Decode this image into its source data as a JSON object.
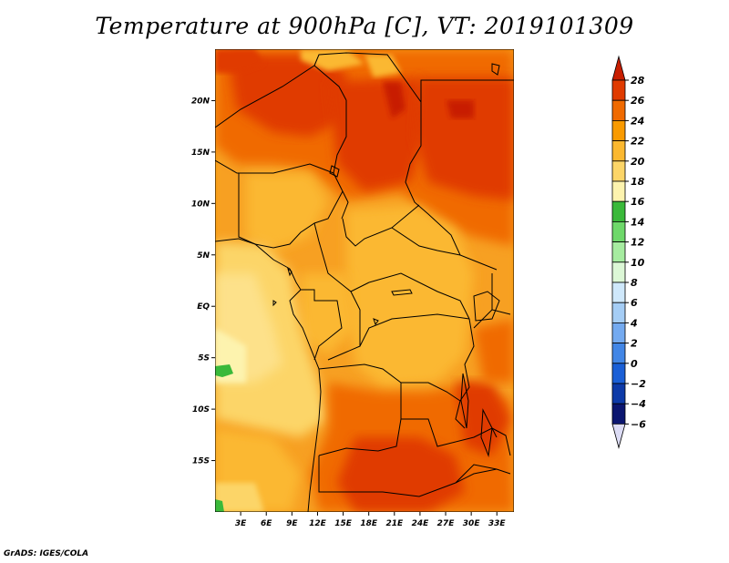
{
  "map": {
    "title": "Temperature at 900hPa [C], VT: 2019101309",
    "credit": "GrADS: IGES/COLA",
    "lat_ticks": [
      {
        "value": 20,
        "label": "20N"
      },
      {
        "value": 15,
        "label": "15N"
      },
      {
        "value": 10,
        "label": "10N"
      },
      {
        "value": 5,
        "label": "5N"
      },
      {
        "value": 0,
        "label": "EQ"
      },
      {
        "value": -5,
        "label": "5S"
      },
      {
        "value": -10,
        "label": "10S"
      },
      {
        "value": -15,
        "label": "15S"
      }
    ],
    "lon_ticks": [
      {
        "value": 3,
        "label": "3E"
      },
      {
        "value": 6,
        "label": "6E"
      },
      {
        "value": 9,
        "label": "9E"
      },
      {
        "value": 12,
        "label": "12E"
      },
      {
        "value": 15,
        "label": "15E"
      },
      {
        "value": 18,
        "label": "18E"
      },
      {
        "value": 21,
        "label": "21E"
      },
      {
        "value": 24,
        "label": "24E"
      },
      {
        "value": 27,
        "label": "27E"
      },
      {
        "value": 30,
        "label": "30E"
      },
      {
        "value": 33,
        "label": "33E"
      }
    ],
    "lon_range": [
      0,
      35
    ],
    "lat_range": [
      -20,
      25
    ],
    "colorbar": {
      "labels": [
        "28",
        "26",
        "24",
        "22",
        "20",
        "18",
        "16",
        "14",
        "12",
        "10",
        "8",
        "6",
        "4",
        "2",
        "0",
        "−2",
        "−4",
        "−6"
      ],
      "colors": [
        "#c81e00",
        "#e03b00",
        "#f06a00",
        "#f99a00",
        "#fbb830",
        "#fcd568",
        "#fdf3ae",
        "#3ab93a",
        "#6ed86a",
        "#a6eca0",
        "#dcf7d6",
        "#cfe8fb",
        "#a5cdf5",
        "#74aaf0",
        "#4286e6",
        "#1a5fd6",
        "#0d3aa8",
        "#0b1670"
      ]
    }
  }
}
